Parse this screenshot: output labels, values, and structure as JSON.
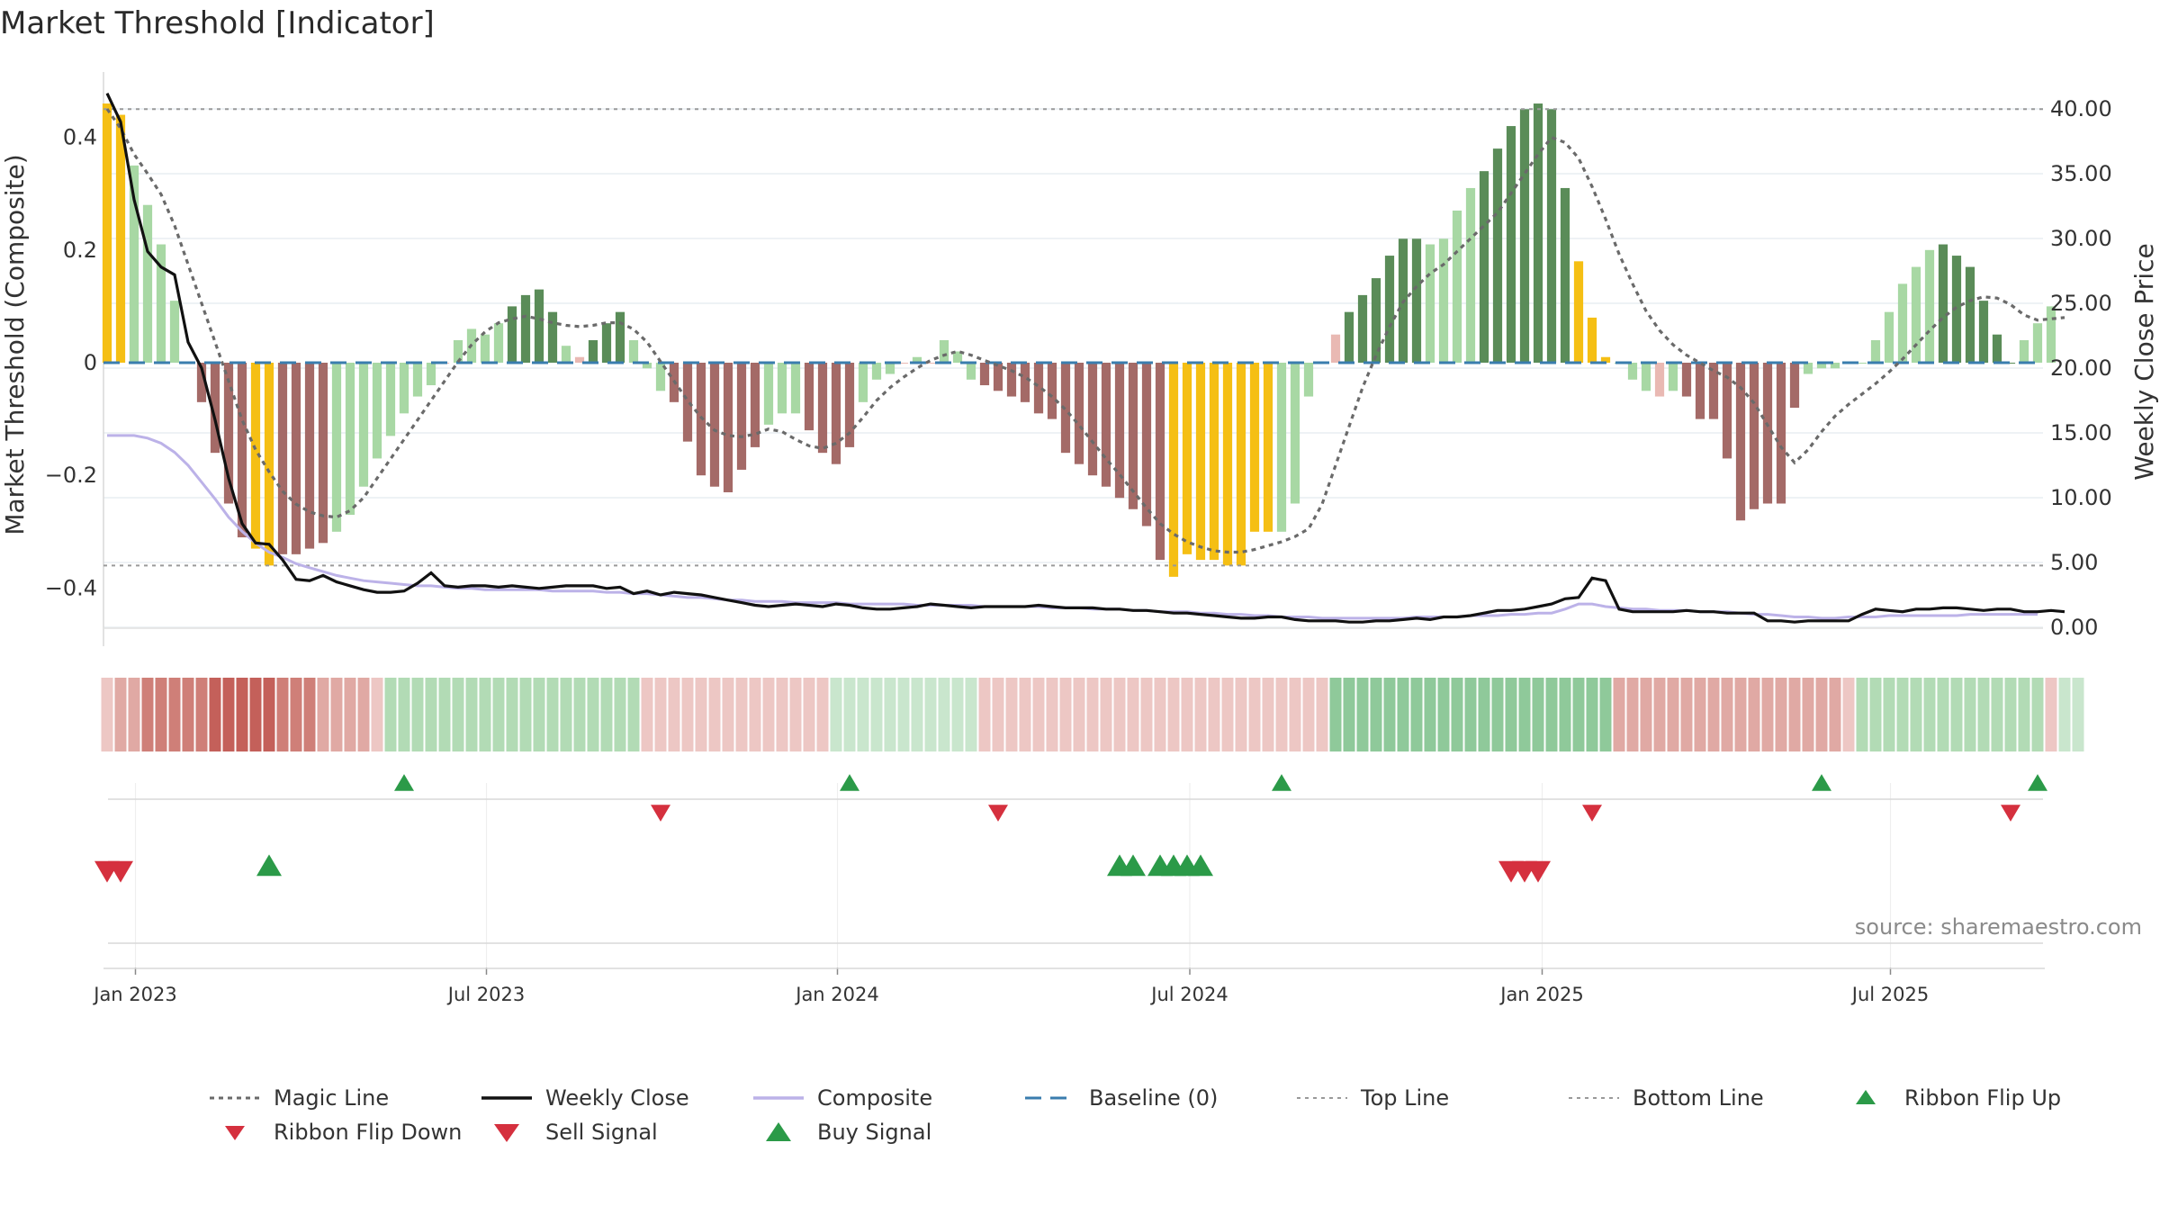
{
  "title": "Market Threshold [Indicator]",
  "source_text": "source: sharemaestro.com",
  "colors": {
    "dark_green": "#5a8c58",
    "light_green": "#a8d8a4",
    "gold": "#f5bf14",
    "dark_red": "#a46a67",
    "light_red": "#e9b9b3",
    "magic": "#6a6a6a",
    "close": "#111111",
    "composite": "#bcb2e8",
    "baseline": "#3a7dae",
    "buy": "#2b9a48",
    "sell": "#d5303e"
  },
  "legend": [
    {
      "key": "magic",
      "label": "Magic Line"
    },
    {
      "key": "close",
      "label": "Weekly Close"
    },
    {
      "key": "composite",
      "label": "Composite"
    },
    {
      "key": "baseline",
      "label": "Baseline (0)"
    },
    {
      "key": "top",
      "label": "Top Line"
    },
    {
      "key": "bottom",
      "label": "Bottom Line"
    },
    {
      "key": "flipup",
      "label": "Ribbon Flip Up"
    },
    {
      "key": "flipdown",
      "label": "Ribbon Flip Down"
    },
    {
      "key": "sell",
      "label": "Sell Signal"
    },
    {
      "key": "buy",
      "label": "Buy Signal"
    }
  ],
  "chart_data": {
    "type": "bar",
    "title": "Market Threshold [Indicator]",
    "ylabel": "Market Threshold (Composite)",
    "y2label": "Weekly Close Price",
    "ylim": [
      -0.47,
      0.53
    ],
    "y2lim": [
      -1.2,
      42.2
    ],
    "yticks": [
      {
        "v": 0.4,
        "t": "0.4"
      },
      {
        "v": 0.2,
        "t": "0.2"
      },
      {
        "v": 0,
        "t": "0"
      },
      {
        "v": -0.2,
        "t": "−0.2"
      },
      {
        "v": -0.4,
        "t": "−0.4"
      }
    ],
    "y2ticks": [
      {
        "v": 40,
        "t": "40.00"
      },
      {
        "v": 35,
        "t": "35.00"
      },
      {
        "v": 30,
        "t": "30.00"
      },
      {
        "v": 25,
        "t": "25.00"
      },
      {
        "v": 20,
        "t": "20.00"
      },
      {
        "v": 15,
        "t": "15.00"
      },
      {
        "v": 10,
        "t": "10.00"
      },
      {
        "v": 5,
        "t": "5.00"
      },
      {
        "v": 0,
        "t": "0.00"
      }
    ],
    "xticks": [
      {
        "w": 2.1,
        "t": "Jan 2023"
      },
      {
        "w": 28.1,
        "t": "Jul 2023"
      },
      {
        "w": 54.1,
        "t": "Jan 2024"
      },
      {
        "w": 80.2,
        "t": "Jul 2024"
      },
      {
        "w": 106.3,
        "t": "Jan 2025"
      },
      {
        "w": 132.1,
        "t": "Jul 2025"
      }
    ],
    "top_line": 0.45,
    "bottom_line": -0.36,
    "weeks": 144,
    "composite_bars": [
      0.46,
      0.44,
      0.35,
      0.28,
      0.21,
      0.11,
      0.0,
      -0.07,
      -0.16,
      -0.25,
      -0.31,
      -0.33,
      -0.36,
      -0.34,
      -0.34,
      -0.33,
      -0.32,
      -0.3,
      -0.27,
      -0.22,
      -0.17,
      -0.13,
      -0.09,
      -0.06,
      -0.04,
      0.0,
      0.04,
      0.06,
      0.05,
      0.07,
      0.1,
      0.12,
      0.13,
      0.09,
      0.03,
      0.01,
      0.04,
      0.07,
      0.09,
      0.04,
      -0.01,
      -0.05,
      -0.07,
      -0.14,
      -0.2,
      -0.22,
      -0.23,
      -0.19,
      -0.15,
      -0.11,
      -0.09,
      -0.09,
      -0.12,
      -0.16,
      -0.18,
      -0.15,
      -0.07,
      -0.03,
      -0.02,
      0.0,
      0.01,
      0.0,
      0.04,
      0.02,
      -0.03,
      -0.04,
      -0.05,
      -0.06,
      -0.07,
      -0.09,
      -0.1,
      -0.16,
      -0.18,
      -0.2,
      -0.22,
      -0.24,
      -0.26,
      -0.29,
      -0.35,
      -0.38,
      -0.34,
      -0.35,
      -0.35,
      -0.36,
      -0.36,
      -0.3,
      -0.3,
      -0.3,
      -0.25,
      -0.06,
      0.0,
      0.05,
      0.09,
      0.12,
      0.15,
      0.19,
      0.22,
      0.22,
      0.21,
      0.22,
      0.27,
      0.31,
      0.34,
      0.38,
      0.42,
      0.45,
      0.46,
      0.45,
      0.31,
      0.18,
      0.08,
      0.01,
      0.0,
      -0.03,
      -0.05,
      -0.06,
      -0.05,
      -0.06,
      -0.1,
      -0.1,
      -0.17,
      -0.28,
      -0.26,
      -0.25,
      -0.25,
      -0.08,
      -0.02,
      -0.01,
      -0.01,
      0.0,
      0.0,
      0.04,
      0.09,
      0.14,
      0.17,
      0.2,
      0.21,
      0.19,
      0.17,
      0.11,
      0.05,
      0.0,
      0.04,
      0.07,
      0.1
    ],
    "bar_colors": "GGLLLLNRRRRGGRRRRLLLLLLLLNLLLLDDDDLNDDDLLLRRRRRRRLLLRRRRLLLNLNLLLRRRRRRRRRRRRRRGGGGGGGGLLLLNDDDDDDLLLLDDDDDDDGGGLLLNLRRRRRRRRRLLLLLLLLLLDDDDDDLLLLLDD",
    "weekly_close": [
      41.2,
      39.0,
      33.0,
      29.0,
      27.8,
      27.2,
      22.0,
      20.0,
      16.0,
      11.5,
      8.0,
      6.5,
      6.4,
      5.2,
      3.7,
      3.6,
      4.0,
      3.5,
      3.2,
      2.9,
      2.7,
      2.7,
      2.8,
      3.4,
      4.2,
      3.2,
      3.1,
      3.2,
      3.2,
      3.1,
      3.2,
      3.1,
      3.0,
      3.1,
      3.2,
      3.2,
      3.2,
      3.0,
      3.1,
      2.6,
      2.8,
      2.5,
      2.7,
      2.6,
      2.5,
      2.3,
      2.1,
      1.9,
      1.7,
      1.6,
      1.7,
      1.8,
      1.7,
      1.6,
      1.8,
      1.7,
      1.5,
      1.4,
      1.4,
      1.5,
      1.6,
      1.8,
      1.7,
      1.6,
      1.5,
      1.6,
      1.6,
      1.6,
      1.6,
      1.7,
      1.6,
      1.5,
      1.5,
      1.5,
      1.4,
      1.4,
      1.3,
      1.3,
      1.2,
      1.1,
      1.1,
      1.0,
      0.9,
      0.8,
      0.7,
      0.7,
      0.8,
      0.8,
      0.6,
      0.5,
      0.5,
      0.5,
      0.4,
      0.4,
      0.5,
      0.5,
      0.6,
      0.7,
      0.6,
      0.8,
      0.8,
      0.9,
      1.1,
      1.3,
      1.3,
      1.4,
      1.6,
      1.8,
      2.2,
      2.3,
      3.8,
      3.6,
      1.4,
      1.2,
      1.2,
      1.2,
      1.2,
      1.3,
      1.2,
      1.2,
      1.1,
      1.1,
      1.1,
      0.5,
      0.5,
      0.4,
      0.5,
      0.5,
      0.5,
      0.5,
      1.0,
      1.4,
      1.3,
      1.2,
      1.4,
      1.4,
      1.5,
      1.5,
      1.4,
      1.3,
      1.4,
      1.4,
      1.2,
      1.2,
      1.3,
      1.2
    ],
    "magic_line": [
      40.0,
      38.5,
      36.5,
      35.0,
      33.4,
      31.0,
      28.0,
      25.0,
      22.0,
      19.0,
      16.0,
      13.7,
      12.0,
      10.5,
      9.5,
      8.9,
      8.6,
      8.5,
      9.0,
      10.0,
      11.5,
      13.0,
      14.5,
      16.0,
      17.5,
      19.0,
      20.5,
      21.8,
      22.8,
      23.5,
      23.8,
      24.0,
      23.8,
      23.5,
      23.3,
      23.2,
      23.3,
      23.5,
      23.5,
      23.0,
      22.0,
      20.5,
      19.0,
      17.5,
      16.2,
      15.2,
      14.8,
      14.7,
      14.9,
      15.3,
      15.1,
      14.5,
      14.0,
      13.8,
      14.2,
      15.0,
      16.2,
      17.5,
      18.5,
      19.3,
      20.0,
      20.6,
      21.0,
      21.3,
      21.0,
      20.6,
      20.2,
      19.8,
      19.3,
      18.6,
      17.8,
      16.8,
      15.6,
      14.3,
      13.0,
      11.8,
      10.5,
      9.2,
      8.0,
      7.2,
      6.6,
      6.2,
      5.9,
      5.8,
      5.8,
      6.0,
      6.3,
      6.6,
      7.0,
      7.6,
      9.5,
      12.5,
      15.5,
      18.5,
      21.0,
      23.2,
      25.1,
      26.3,
      27.3,
      28.0,
      29.0,
      30.0,
      31.0,
      32.0,
      33.5,
      35.0,
      36.5,
      37.8,
      37.4,
      36.2,
      34.0,
      31.5,
      28.8,
      26.5,
      24.4,
      22.9,
      21.8,
      21.0,
      20.4,
      19.8,
      19.3,
      18.5,
      17.3,
      15.6,
      13.9,
      12.7,
      13.7,
      15.1,
      16.3,
      17.2,
      18.0,
      18.8,
      19.7,
      20.7,
      21.8,
      22.9,
      23.9,
      24.7,
      25.2,
      25.5,
      25.4,
      24.9,
      24.1,
      23.7,
      23.8,
      23.9
    ],
    "composite_line": [
      14.8,
      14.8,
      14.8,
      14.6,
      14.2,
      13.5,
      12.5,
      11.2,
      9.9,
      8.5,
      7.4,
      6.5,
      5.8,
      5.4,
      4.9,
      4.6,
      4.3,
      4.0,
      3.8,
      3.6,
      3.5,
      3.4,
      3.3,
      3.2,
      3.2,
      3.1,
      3.0,
      3.0,
      2.9,
      2.9,
      2.9,
      2.9,
      2.9,
      2.8,
      2.8,
      2.8,
      2.8,
      2.7,
      2.7,
      2.6,
      2.6,
      2.5,
      2.4,
      2.3,
      2.3,
      2.2,
      2.1,
      2.1,
      2.0,
      2.0,
      2.0,
      1.9,
      1.9,
      1.9,
      1.9,
      1.8,
      1.8,
      1.8,
      1.8,
      1.8,
      1.7,
      1.7,
      1.7,
      1.7,
      1.7,
      1.6,
      1.6,
      1.6,
      1.6,
      1.6,
      1.5,
      1.5,
      1.5,
      1.4,
      1.4,
      1.4,
      1.3,
      1.3,
      1.2,
      1.2,
      1.2,
      1.1,
      1.1,
      1.0,
      1.0,
      0.9,
      0.9,
      0.8,
      0.8,
      0.8,
      0.7,
      0.7,
      0.7,
      0.7,
      0.7,
      0.7,
      0.7,
      0.8,
      0.8,
      0.8,
      0.8,
      0.9,
      0.9,
      0.9,
      1.0,
      1.0,
      1.1,
      1.1,
      1.4,
      1.8,
      1.8,
      1.6,
      1.5,
      1.4,
      1.4,
      1.3,
      1.3,
      1.3,
      1.2,
      1.2,
      1.2,
      1.1,
      1.0,
      1.0,
      0.9,
      0.8,
      0.8,
      0.7,
      0.7,
      0.8,
      0.8,
      0.8,
      0.9,
      0.9,
      0.9,
      0.9,
      0.9,
      0.9,
      1.0,
      1.0,
      1.0,
      1.0,
      1.0,
      1.0
    ],
    "ribbon": [
      -1,
      -2,
      -2,
      -3,
      -3,
      -3,
      -3,
      -3,
      -4,
      -4,
      -4,
      -4,
      -4,
      -3,
      -3,
      -3,
      -2,
      -2,
      -2,
      -2,
      -1,
      2,
      2,
      2,
      2,
      2,
      2,
      2,
      2,
      2,
      2,
      2,
      2,
      2,
      2,
      2,
      2,
      2,
      2,
      2,
      -1,
      -1,
      -1,
      -1,
      -1,
      -1,
      -1,
      -1,
      -1,
      -1,
      -1,
      -1,
      -1,
      -1,
      1,
      1,
      1,
      1,
      1,
      1,
      1,
      1,
      1,
      1,
      1,
      -1,
      -1,
      -1,
      -1,
      -1,
      -1,
      -1,
      -1,
      -1,
      -1,
      -1,
      -1,
      -1,
      -1,
      -1,
      -1,
      -1,
      -1,
      -1,
      -1,
      -1,
      -1,
      -1,
      -1,
      -1,
      -1,
      3,
      3,
      3,
      3,
      3,
      3,
      3,
      3,
      3,
      3,
      3,
      3,
      3,
      3,
      3,
      3,
      3,
      3,
      3,
      3,
      3,
      -2,
      -2,
      -2,
      -2,
      -2,
      -2,
      -2,
      -2,
      -2,
      -2,
      -2,
      -2,
      -2,
      -2,
      -2,
      -2,
      -2,
      -1,
      2,
      2,
      2,
      2,
      2,
      2,
      2,
      2,
      2,
      2,
      2,
      2,
      2,
      2,
      -1,
      1,
      1
    ],
    "flip_up_weeks": [
      22,
      55,
      87,
      127,
      143
    ],
    "flip_down_weeks": [
      41,
      66,
      110,
      141
    ],
    "buy_weeks": [
      12,
      75,
      76,
      78,
      79,
      80,
      81
    ],
    "sell_weeks": [
      0,
      1,
      104,
      105,
      106
    ]
  }
}
